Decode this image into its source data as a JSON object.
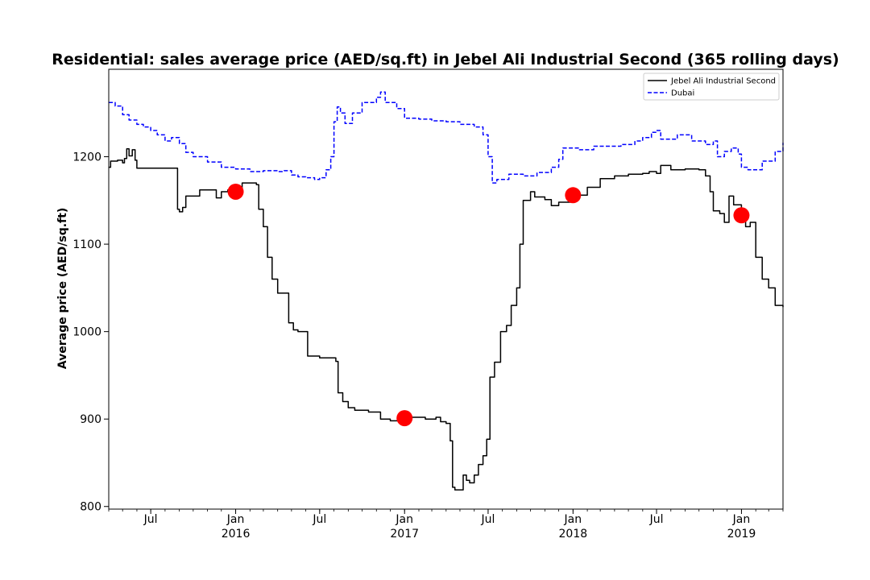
{
  "chart_data": {
    "type": "line",
    "title": "Residential: sales average price (AED/sq.ft) in Jebel Ali Industrial Second (365 rolling days)",
    "xlabel": "",
    "ylabel": "Average price (AED/sq.ft)",
    "xlim": [
      "2015-04-01",
      "2019-04-01"
    ],
    "ylim": [
      797,
      1300
    ],
    "grid": false,
    "legend_position": "top-right",
    "y_ticks": [
      800,
      900,
      1000,
      1100,
      1200
    ],
    "x_ticks": [
      {
        "date": "2015-07-01",
        "label": "Jul",
        "sublabel": ""
      },
      {
        "date": "2016-01-01",
        "label": "Jan",
        "sublabel": "2016"
      },
      {
        "date": "2016-07-01",
        "label": "Jul",
        "sublabel": ""
      },
      {
        "date": "2017-01-01",
        "label": "Jan",
        "sublabel": "2017"
      },
      {
        "date": "2017-07-01",
        "label": "Jul",
        "sublabel": ""
      },
      {
        "date": "2018-01-01",
        "label": "Jan",
        "sublabel": "2018"
      },
      {
        "date": "2018-07-01",
        "label": "Jul",
        "sublabel": ""
      },
      {
        "date": "2019-01-01",
        "label": "Jan",
        "sublabel": "2019"
      }
    ],
    "series": [
      {
        "name": "Jebel Ali Industrial Second",
        "color": "#000000",
        "line_style": "solid",
        "points": [
          [
            "2015-04-01",
            1188
          ],
          [
            "2015-04-05",
            1195
          ],
          [
            "2015-04-20",
            1196
          ],
          [
            "2015-05-01",
            1193
          ],
          [
            "2015-05-05",
            1198
          ],
          [
            "2015-05-10",
            1209
          ],
          [
            "2015-05-15",
            1201
          ],
          [
            "2015-05-22",
            1208
          ],
          [
            "2015-05-28",
            1196
          ],
          [
            "2015-06-01",
            1187
          ],
          [
            "2015-07-15",
            1187
          ],
          [
            "2015-08-25",
            1187
          ],
          [
            "2015-08-28",
            1140
          ],
          [
            "2015-09-01",
            1137
          ],
          [
            "2015-09-08",
            1142
          ],
          [
            "2015-09-15",
            1155
          ],
          [
            "2015-10-10",
            1155
          ],
          [
            "2015-10-15",
            1162
          ],
          [
            "2015-11-10",
            1162
          ],
          [
            "2015-11-20",
            1153
          ],
          [
            "2015-12-01",
            1160
          ],
          [
            "2015-12-15",
            1162
          ],
          [
            "2016-01-01",
            1160
          ],
          [
            "2016-01-15",
            1170
          ],
          [
            "2016-02-15",
            1168
          ],
          [
            "2016-02-20",
            1140
          ],
          [
            "2016-03-01",
            1120
          ],
          [
            "2016-03-10",
            1085
          ],
          [
            "2016-03-20",
            1060
          ],
          [
            "2016-04-01",
            1044
          ],
          [
            "2016-04-20",
            1044
          ],
          [
            "2016-04-25",
            1010
          ],
          [
            "2016-05-05",
            1002
          ],
          [
            "2016-05-15",
            1000
          ],
          [
            "2016-06-01",
            1000
          ],
          [
            "2016-06-05",
            972
          ],
          [
            "2016-07-01",
            970
          ],
          [
            "2016-08-05",
            966
          ],
          [
            "2016-08-10",
            930
          ],
          [
            "2016-08-20",
            920
          ],
          [
            "2016-09-01",
            913
          ],
          [
            "2016-09-15",
            910
          ],
          [
            "2016-10-15",
            908
          ],
          [
            "2016-11-10",
            900
          ],
          [
            "2016-12-01",
            898
          ],
          [
            "2016-12-20",
            896
          ],
          [
            "2017-01-01",
            901
          ],
          [
            "2017-01-15",
            902
          ],
          [
            "2017-02-15",
            900
          ],
          [
            "2017-03-10",
            902
          ],
          [
            "2017-03-20",
            897
          ],
          [
            "2017-04-01",
            895
          ],
          [
            "2017-04-10",
            875
          ],
          [
            "2017-04-15",
            822
          ],
          [
            "2017-04-20",
            819
          ],
          [
            "2017-05-05",
            819
          ],
          [
            "2017-05-08",
            836
          ],
          [
            "2017-05-15",
            830
          ],
          [
            "2017-05-22",
            827
          ],
          [
            "2017-06-01",
            836
          ],
          [
            "2017-06-10",
            848
          ],
          [
            "2017-06-20",
            858
          ],
          [
            "2017-06-28",
            877
          ],
          [
            "2017-07-05",
            948
          ],
          [
            "2017-07-15",
            965
          ],
          [
            "2017-07-28",
            1000
          ],
          [
            "2017-08-10",
            1007
          ],
          [
            "2017-08-20",
            1030
          ],
          [
            "2017-09-01",
            1050
          ],
          [
            "2017-09-08",
            1100
          ],
          [
            "2017-09-15",
            1150
          ],
          [
            "2017-10-01",
            1160
          ],
          [
            "2017-10-10",
            1154
          ],
          [
            "2017-11-01",
            1151
          ],
          [
            "2017-11-15",
            1144
          ],
          [
            "2017-12-01",
            1148
          ],
          [
            "2018-01-01",
            1156
          ],
          [
            "2018-02-01",
            1165
          ],
          [
            "2018-03-01",
            1175
          ],
          [
            "2018-04-01",
            1178
          ],
          [
            "2018-05-01",
            1180
          ],
          [
            "2018-06-01",
            1181
          ],
          [
            "2018-06-15",
            1183
          ],
          [
            "2018-07-01",
            1181
          ],
          [
            "2018-07-10",
            1190
          ],
          [
            "2018-08-01",
            1185
          ],
          [
            "2018-09-01",
            1186
          ],
          [
            "2018-10-01",
            1185
          ],
          [
            "2018-10-15",
            1178
          ],
          [
            "2018-10-25",
            1160
          ],
          [
            "2018-11-01",
            1138
          ],
          [
            "2018-11-15",
            1135
          ],
          [
            "2018-11-25",
            1125
          ],
          [
            "2018-12-05",
            1155
          ],
          [
            "2018-12-15",
            1145
          ],
          [
            "2019-01-01",
            1133
          ],
          [
            "2019-01-10",
            1120
          ],
          [
            "2019-01-20",
            1125
          ],
          [
            "2019-02-01",
            1085
          ],
          [
            "2019-02-15",
            1060
          ],
          [
            "2019-03-01",
            1050
          ],
          [
            "2019-03-15",
            1030
          ],
          [
            "2019-03-25",
            1030
          ],
          [
            "2019-04-01",
            1028
          ]
        ]
      },
      {
        "name": "Dubai",
        "color": "#0000ff",
        "line_style": "dashed",
        "points": [
          [
            "2015-04-01",
            1262
          ],
          [
            "2015-04-15",
            1258
          ],
          [
            "2015-05-01",
            1248
          ],
          [
            "2015-05-15",
            1242
          ],
          [
            "2015-06-01",
            1237
          ],
          [
            "2015-06-15",
            1234
          ],
          [
            "2015-07-01",
            1230
          ],
          [
            "2015-07-15",
            1225
          ],
          [
            "2015-08-01",
            1218
          ],
          [
            "2015-08-15",
            1222
          ],
          [
            "2015-09-01",
            1215
          ],
          [
            "2015-09-15",
            1205
          ],
          [
            "2015-10-01",
            1200
          ],
          [
            "2015-11-01",
            1194
          ],
          [
            "2015-12-01",
            1188
          ],
          [
            "2016-01-01",
            1186
          ],
          [
            "2016-02-01",
            1183
          ],
          [
            "2016-02-15",
            1183
          ],
          [
            "2016-03-01",
            1184
          ],
          [
            "2016-04-01",
            1183
          ],
          [
            "2016-04-15",
            1184
          ],
          [
            "2016-05-01",
            1179
          ],
          [
            "2016-05-15",
            1177
          ],
          [
            "2016-06-01",
            1176
          ],
          [
            "2016-06-20",
            1174
          ],
          [
            "2016-07-01",
            1176
          ],
          [
            "2016-07-15",
            1185
          ],
          [
            "2016-07-25",
            1200
          ],
          [
            "2016-08-01",
            1240
          ],
          [
            "2016-08-08",
            1257
          ],
          [
            "2016-08-15",
            1250
          ],
          [
            "2016-08-25",
            1238
          ],
          [
            "2016-09-10",
            1250
          ],
          [
            "2016-10-01",
            1262
          ],
          [
            "2016-10-15",
            1262
          ],
          [
            "2016-11-01",
            1268
          ],
          [
            "2016-11-10",
            1274
          ],
          [
            "2016-11-20",
            1262
          ],
          [
            "2016-12-15",
            1255
          ],
          [
            "2017-01-01",
            1244
          ],
          [
            "2017-02-01",
            1243
          ],
          [
            "2017-03-01",
            1241
          ],
          [
            "2017-04-01",
            1240
          ],
          [
            "2017-05-01",
            1237
          ],
          [
            "2017-06-01",
            1234
          ],
          [
            "2017-06-20",
            1225
          ],
          [
            "2017-07-01",
            1200
          ],
          [
            "2017-07-10",
            1170
          ],
          [
            "2017-07-20",
            1174
          ],
          [
            "2017-08-15",
            1180
          ],
          [
            "2017-09-15",
            1178
          ],
          [
            "2017-10-15",
            1182
          ],
          [
            "2017-11-15",
            1188
          ],
          [
            "2017-12-01",
            1197
          ],
          [
            "2017-12-10",
            1210
          ],
          [
            "2018-01-15",
            1208
          ],
          [
            "2018-02-15",
            1212
          ],
          [
            "2018-03-15",
            1212
          ],
          [
            "2018-04-15",
            1214
          ],
          [
            "2018-05-15",
            1218
          ],
          [
            "2018-06-01",
            1222
          ],
          [
            "2018-06-20",
            1228
          ],
          [
            "2018-07-01",
            1230
          ],
          [
            "2018-07-10",
            1220
          ],
          [
            "2018-08-15",
            1225
          ],
          [
            "2018-09-15",
            1218
          ],
          [
            "2018-10-15",
            1214
          ],
          [
            "2018-11-01",
            1218
          ],
          [
            "2018-11-10",
            1200
          ],
          [
            "2018-11-25",
            1206
          ],
          [
            "2018-12-10",
            1210
          ],
          [
            "2018-12-25",
            1203
          ],
          [
            "2019-01-01",
            1188
          ],
          [
            "2019-01-15",
            1185
          ],
          [
            "2019-02-15",
            1195
          ],
          [
            "2019-03-15",
            1206
          ],
          [
            "2019-04-01",
            1216
          ]
        ]
      }
    ],
    "markers": [
      {
        "date": "2016-01-01",
        "value": 1160,
        "color": "#ff0000"
      },
      {
        "date": "2017-01-01",
        "value": 901,
        "color": "#ff0000"
      },
      {
        "date": "2018-01-01",
        "value": 1156,
        "color": "#ff0000"
      },
      {
        "date": "2019-01-01",
        "value": 1133,
        "color": "#ff0000"
      }
    ]
  }
}
